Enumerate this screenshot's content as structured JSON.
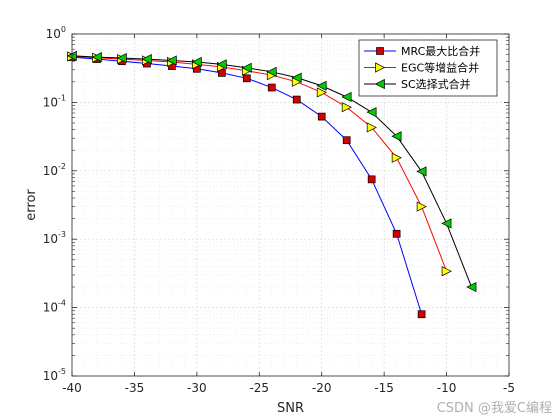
{
  "chart_data": {
    "type": "line",
    "xlabel": "SNR",
    "ylabel": "error",
    "xlim": [
      -40,
      -5
    ],
    "ylim": [
      1e-05,
      1
    ],
    "yscale": "log",
    "grid": true,
    "minor_grid": true,
    "legend_position": "top-right",
    "x_ticks": [
      "-40",
      "-35",
      "-30",
      "-25",
      "-20",
      "-15",
      "-10",
      "-5"
    ],
    "y_ticks": [
      {
        "base": "10",
        "exp": "0"
      },
      {
        "base": "10",
        "exp": "-1"
      },
      {
        "base": "10",
        "exp": "-2"
      },
      {
        "base": "10",
        "exp": "-3"
      },
      {
        "base": "10",
        "exp": "-4"
      },
      {
        "base": "10",
        "exp": "-5"
      }
    ],
    "series": [
      {
        "name": "MRC最大比合并",
        "color": "#0000ff",
        "marker_color": "#d40000",
        "marker": "square",
        "x": [
          -40,
          -38,
          -36,
          -34,
          -32,
          -30,
          -28,
          -26,
          -24,
          -22,
          -20,
          -18,
          -16,
          -14,
          -12
        ],
        "y": [
          0.46,
          0.43,
          0.4,
          0.37,
          0.34,
          0.31,
          0.27,
          0.225,
          0.165,
          0.11,
          0.062,
          0.028,
          0.0075,
          0.0012,
          8e-05
        ]
      },
      {
        "name": "EGC等增益合并",
        "color": "#ff0000",
        "marker_color": "#ffff00",
        "marker": "triangle-right",
        "x": [
          -40,
          -38,
          -36,
          -34,
          -32,
          -30,
          -28,
          -26,
          -24,
          -22,
          -20,
          -18,
          -16,
          -14,
          -12,
          -10
        ],
        "y": [
          0.47,
          0.45,
          0.43,
          0.41,
          0.39,
          0.36,
          0.33,
          0.29,
          0.25,
          0.2,
          0.14,
          0.085,
          0.043,
          0.0155,
          0.003,
          0.00034
        ]
      },
      {
        "name": "SC选择式合并",
        "color": "#000000",
        "marker_color": "#00cc00",
        "marker": "triangle-left",
        "x": [
          -40,
          -38,
          -36,
          -34,
          -32,
          -30,
          -28,
          -26,
          -24,
          -22,
          -20,
          -18,
          -16,
          -14,
          -12,
          -10,
          -8
        ],
        "y": [
          0.48,
          0.46,
          0.445,
          0.43,
          0.41,
          0.39,
          0.36,
          0.32,
          0.28,
          0.23,
          0.175,
          0.12,
          0.072,
          0.032,
          0.0098,
          0.0017,
          0.0002
        ]
      }
    ]
  },
  "watermark": "CSDN @我爱C编程"
}
